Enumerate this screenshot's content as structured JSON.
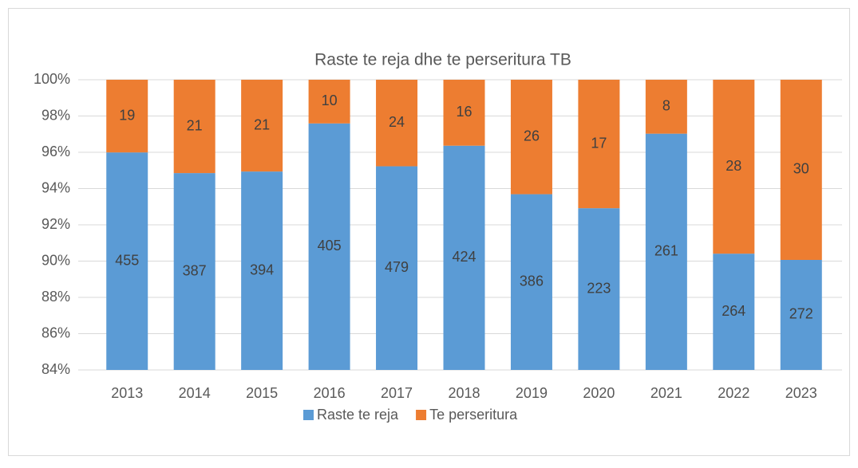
{
  "chart_data": {
    "type": "bar",
    "stack": "percent",
    "title": "Raste te reja dhe te perseritura TB",
    "categories": [
      "2013",
      "2014",
      "2015",
      "2016",
      "2017",
      "2018",
      "2019",
      "2020",
      "2021",
      "2022",
      "2023"
    ],
    "series": [
      {
        "name": "Raste te reja",
        "color": "#5b9bd5",
        "values": [
          455,
          387,
          394,
          405,
          479,
          424,
          386,
          223,
          261,
          264,
          272
        ]
      },
      {
        "name": "Te perseritura",
        "color": "#ed7d31",
        "values": [
          19,
          21,
          21,
          10,
          24,
          16,
          26,
          17,
          8,
          28,
          30
        ]
      }
    ],
    "ylim": [
      84,
      100
    ],
    "yticks": [
      {
        "value": 84,
        "label": "84%"
      },
      {
        "value": 86,
        "label": "86%"
      },
      {
        "value": 88,
        "label": "88%"
      },
      {
        "value": 90,
        "label": "90%"
      },
      {
        "value": 92,
        "label": "92%"
      },
      {
        "value": 94,
        "label": "94%"
      },
      {
        "value": 96,
        "label": "96%"
      },
      {
        "value": 98,
        "label": "98%"
      },
      {
        "value": 100,
        "label": "100%"
      }
    ],
    "grid": true,
    "legend": "bottom"
  }
}
